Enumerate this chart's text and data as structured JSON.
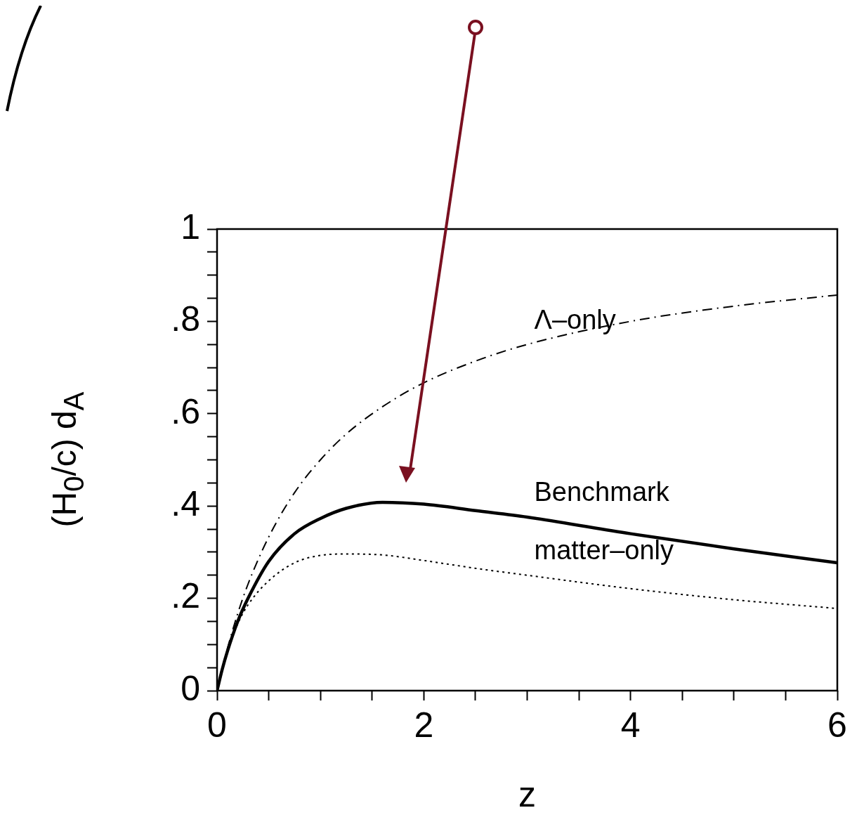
{
  "chart_data": {
    "type": "line",
    "xlabel": "z",
    "ylabel": "(H$_{0}$/c) d$_{A}$",
    "xlim": [
      0,
      6
    ],
    "ylim": [
      0,
      1
    ],
    "xticks": [
      0,
      {
        "value": 0.5,
        "label": null
      },
      {
        "value": 1,
        "label": null
      },
      {
        "value": 1.5,
        "label": null
      },
      2,
      {
        "value": 2.5,
        "label": null
      },
      {
        "value": 3,
        "label": null
      },
      {
        "value": 3.5,
        "label": null
      },
      4,
      {
        "value": 4.5,
        "label": null
      },
      {
        "value": 5,
        "label": null
      },
      {
        "value": 5.5,
        "label": null
      },
      6
    ],
    "yticks": [
      0,
      {
        "value": 0.05,
        "label": null
      },
      {
        "value": 0.1,
        "label": null
      },
      {
        "value": 0.15,
        "label": null
      },
      {
        "value": 0.2,
        "label": ".2"
      },
      {
        "value": 0.25,
        "label": null
      },
      {
        "value": 0.3,
        "label": null
      },
      {
        "value": 0.35,
        "label": null
      },
      {
        "value": 0.4,
        "label": ".4"
      },
      {
        "value": 0.45,
        "label": null
      },
      {
        "value": 0.5,
        "label": null
      },
      {
        "value": 0.55,
        "label": null
      },
      {
        "value": 0.6,
        "label": ".6"
      },
      {
        "value": 0.65,
        "label": null
      },
      {
        "value": 0.7,
        "label": null
      },
      {
        "value": 0.75,
        "label": null
      },
      {
        "value": 0.8,
        "label": ".8"
      },
      {
        "value": 0.85,
        "label": null
      },
      {
        "value": 0.9,
        "label": null
      },
      {
        "value": 0.95,
        "label": null
      },
      1
    ],
    "grid": false,
    "legend": false,
    "x": [
      0,
      0.05,
      0.1,
      0.2,
      0.3,
      0.5,
      0.75,
      1,
      1.25,
      1.6,
      2,
      2.5,
      3,
      4,
      5,
      6
    ],
    "series": [
      {
        "name": "Λ–only",
        "color": "#000000",
        "line_style": "dashed",
        "values": [
          0,
          0.048,
          0.091,
          0.167,
          0.231,
          0.333,
          0.429,
          0.5,
          0.556,
          0.615,
          0.667,
          0.714,
          0.75,
          0.8,
          0.833,
          0.857
        ]
      },
      {
        "name": "Benchmark",
        "color": "#000000",
        "line_style": "solid",
        "values": [
          0,
          0.046,
          0.085,
          0.15,
          0.2,
          0.28,
          0.34,
          0.373,
          0.395,
          0.408,
          0.404,
          0.39,
          0.376,
          0.34,
          0.307,
          0.277
        ]
      },
      {
        "name": "matter–only",
        "color": "#000000",
        "line_style": "dotted",
        "values": [
          0,
          0.046,
          0.087,
          0.145,
          0.186,
          0.238,
          0.277,
          0.293,
          0.296,
          0.294,
          0.282,
          0.265,
          0.25,
          0.221,
          0.197,
          0.178
        ]
      }
    ]
  }
}
